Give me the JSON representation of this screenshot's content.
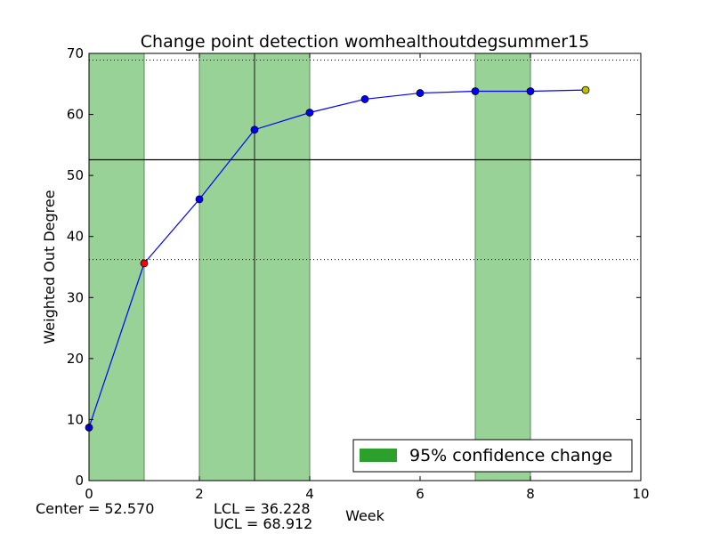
{
  "chart_data": {
    "type": "line",
    "title": "Change point detection womhealthoutdegsummer15",
    "xlabel": "Week",
    "ylabel": "Weighted Out Degree",
    "xlim": [
      0,
      10
    ],
    "ylim": [
      0,
      70
    ],
    "xticks": [
      0,
      2,
      4,
      6,
      8,
      10
    ],
    "yticks": [
      0,
      10,
      20,
      30,
      40,
      50,
      60,
      70
    ],
    "series": [
      {
        "x": [
          0,
          1,
          2,
          3,
          4,
          5,
          6,
          7,
          8,
          9
        ],
        "values": [
          8.7,
          35.6,
          46.1,
          57.5,
          60.3,
          62.5,
          63.5,
          63.8,
          63.8,
          64.0
        ],
        "color": "#0000ff",
        "marker_colors": [
          "#0000ff",
          "#ff0000",
          "#0000ff",
          "#0000ff",
          "#0000ff",
          "#0000ff",
          "#0000ff",
          "#0000ff",
          "#0000ff",
          "#bfbf00"
        ]
      }
    ],
    "center": 52.57,
    "lcl": 36.228,
    "ucl": 68.912,
    "change_regions": [
      [
        0,
        1
      ],
      [
        2,
        4
      ],
      [
        7,
        8
      ]
    ],
    "change_lines": [
      3
    ],
    "region_color": "#98d296",
    "legend_position": "lower-right",
    "legend_label": "95% confidence change",
    "legend_color": "#2ca02c",
    "grid": false
  },
  "annotations": {
    "center_text": "Center = 52.570",
    "lcl_text": "LCL = 36.228",
    "ucl_text": "UCL = 68.912"
  }
}
